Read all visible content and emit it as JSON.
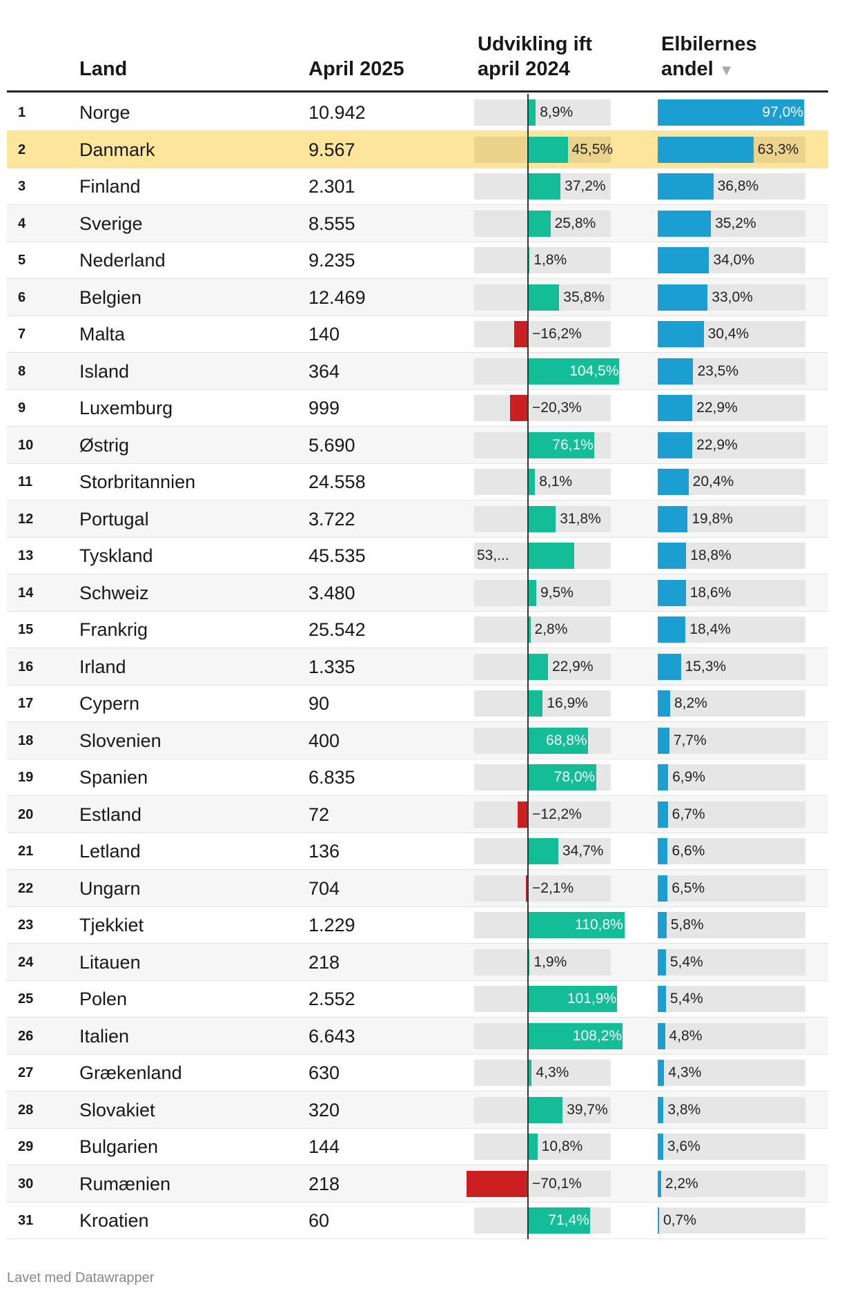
{
  "header": {
    "land": "Land",
    "april": "April 2025",
    "udv_line1": "Udvikling ift",
    "udv_line2": "april 2024",
    "andel_line1": "Elbilernes",
    "andel_line2": "andel",
    "sort_icon": "▼"
  },
  "colors": {
    "positive": "#12bd98",
    "negative": "#cc1f1f",
    "share": "#1a9fd0",
    "highlight": "#fde69c"
  },
  "chart_data": {
    "type": "table",
    "columns": [
      "Land",
      "April 2025",
      "Udvikling ift april 2024",
      "Elbilernes andel"
    ],
    "highlight_rank": 2,
    "sorted_by": "Elbilernes andel",
    "rows": [
      {
        "rank": "1",
        "land": "Norge",
        "april": "10.942",
        "udv": 8.9,
        "udv_label": "8,9%",
        "andel": 97.0,
        "andel_label": "97,0%"
      },
      {
        "rank": "2",
        "land": "Danmark",
        "april": "9.567",
        "udv": 45.5,
        "udv_label": "45,5%",
        "andel": 63.3,
        "andel_label": "63,3%"
      },
      {
        "rank": "3",
        "land": "Finland",
        "april": "2.301",
        "udv": 37.2,
        "udv_label": "37,2%",
        "andel": 36.8,
        "andel_label": "36,8%"
      },
      {
        "rank": "4",
        "land": "Sverige",
        "april": "8.555",
        "udv": 25.8,
        "udv_label": "25,8%",
        "andel": 35.2,
        "andel_label": "35,2%"
      },
      {
        "rank": "5",
        "land": "Nederland",
        "april": "9.235",
        "udv": 1.8,
        "udv_label": "1,8%",
        "andel": 34.0,
        "andel_label": "34,0%"
      },
      {
        "rank": "6",
        "land": "Belgien",
        "april": "12.469",
        "udv": 35.8,
        "udv_label": "35,8%",
        "andel": 33.0,
        "andel_label": "33,0%"
      },
      {
        "rank": "7",
        "land": "Malta",
        "april": "140",
        "udv": -16.2,
        "udv_label": "−16,2%",
        "andel": 30.4,
        "andel_label": "30,4%"
      },
      {
        "rank": "8",
        "land": "Island",
        "april": "364",
        "udv": 104.5,
        "udv_label": "104,5%",
        "andel": 23.5,
        "andel_label": "23,5%"
      },
      {
        "rank": "9",
        "land": "Luxemburg",
        "april": "999",
        "udv": -20.3,
        "udv_label": "−20,3%",
        "andel": 22.9,
        "andel_label": "22,9%"
      },
      {
        "rank": "10",
        "land": "Østrig",
        "april": "5.690",
        "udv": 76.1,
        "udv_label": "76,1%",
        "andel": 22.9,
        "andel_label": "22,9%"
      },
      {
        "rank": "11",
        "land": "Storbritannien",
        "april": "24.558",
        "udv": 8.1,
        "udv_label": "8,1%",
        "andel": 20.4,
        "andel_label": "20,4%"
      },
      {
        "rank": "12",
        "land": "Portugal",
        "april": "3.722",
        "udv": 31.8,
        "udv_label": "31,8%",
        "andel": 19.8,
        "andel_label": "19,8%"
      },
      {
        "rank": "13",
        "land": "Tyskland",
        "april": "45.535",
        "udv": 53.0,
        "udv_label": "53,...",
        "andel": 18.8,
        "andel_label": "18,8%"
      },
      {
        "rank": "14",
        "land": "Schweiz",
        "april": "3.480",
        "udv": 9.5,
        "udv_label": "9,5%",
        "andel": 18.6,
        "andel_label": "18,6%"
      },
      {
        "rank": "15",
        "land": "Frankrig",
        "april": "25.542",
        "udv": 2.8,
        "udv_label": "2,8%",
        "andel": 18.4,
        "andel_label": "18,4%"
      },
      {
        "rank": "16",
        "land": "Irland",
        "april": "1.335",
        "udv": 22.9,
        "udv_label": "22,9%",
        "andel": 15.3,
        "andel_label": "15,3%"
      },
      {
        "rank": "17",
        "land": "Cypern",
        "april": "90",
        "udv": 16.9,
        "udv_label": "16,9%",
        "andel": 8.2,
        "andel_label": "8,2%"
      },
      {
        "rank": "18",
        "land": "Slovenien",
        "april": "400",
        "udv": 68.8,
        "udv_label": "68,8%",
        "andel": 7.7,
        "andel_label": "7,7%"
      },
      {
        "rank": "19",
        "land": "Spanien",
        "april": "6.835",
        "udv": 78.0,
        "udv_label": "78,0%",
        "andel": 6.9,
        "andel_label": "6,9%"
      },
      {
        "rank": "20",
        "land": "Estland",
        "april": "72",
        "udv": -12.2,
        "udv_label": "−12,2%",
        "andel": 6.7,
        "andel_label": "6,7%"
      },
      {
        "rank": "21",
        "land": "Letland",
        "april": "136",
        "udv": 34.7,
        "udv_label": "34,7%",
        "andel": 6.6,
        "andel_label": "6,6%"
      },
      {
        "rank": "22",
        "land": "Ungarn",
        "april": "704",
        "udv": -2.1,
        "udv_label": "−2,1%",
        "andel": 6.5,
        "andel_label": "6,5%"
      },
      {
        "rank": "23",
        "land": "Tjekkiet",
        "april": "1.229",
        "udv": 110.8,
        "udv_label": "110,8%",
        "andel": 5.8,
        "andel_label": "5,8%"
      },
      {
        "rank": "24",
        "land": "Litauen",
        "april": "218",
        "udv": 1.9,
        "udv_label": "1,9%",
        "andel": 5.4,
        "andel_label": "5,4%"
      },
      {
        "rank": "25",
        "land": "Polen",
        "april": "2.552",
        "udv": 101.9,
        "udv_label": "101,9%",
        "andel": 5.4,
        "andel_label": "5,4%"
      },
      {
        "rank": "26",
        "land": "Italien",
        "april": "6.643",
        "udv": 108.2,
        "udv_label": "108,2%",
        "andel": 4.8,
        "andel_label": "4,8%"
      },
      {
        "rank": "27",
        "land": "Grækenland",
        "april": "630",
        "udv": 4.3,
        "udv_label": "4,3%",
        "andel": 4.3,
        "andel_label": "4,3%"
      },
      {
        "rank": "28",
        "land": "Slovakiet",
        "april": "320",
        "udv": 39.7,
        "udv_label": "39,7%",
        "andel": 3.8,
        "andel_label": "3,8%"
      },
      {
        "rank": "29",
        "land": "Bulgarien",
        "april": "144",
        "udv": 10.8,
        "udv_label": "10,8%",
        "andel": 3.6,
        "andel_label": "3,6%"
      },
      {
        "rank": "30",
        "land": "Rumænien",
        "april": "218",
        "udv": -70.1,
        "udv_label": "−70,1%",
        "andel": 2.2,
        "andel_label": "2,2%"
      },
      {
        "rank": "31",
        "land": "Kroatien",
        "april": "60",
        "udv": 71.4,
        "udv_label": "71,4%",
        "andel": 0.7,
        "andel_label": "0,7%"
      }
    ]
  },
  "footer": "Lavet med Datawrapper"
}
